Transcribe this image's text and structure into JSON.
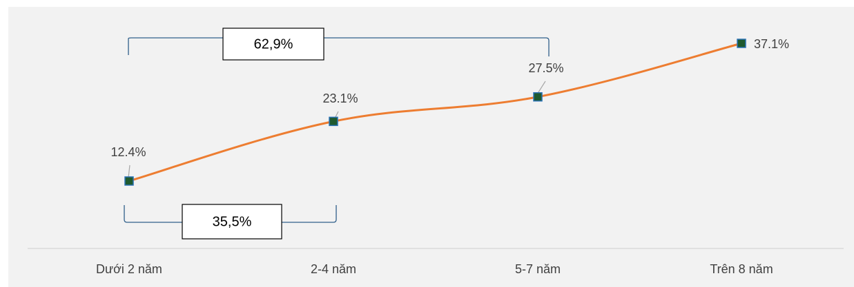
{
  "chart_data": {
    "type": "line",
    "categories": [
      "Dưới 2 năm",
      "2-4 năm",
      "5-7 năm",
      "Trên 8 năm"
    ],
    "series": [
      {
        "color": "#ed7d31",
        "values": [
          12.4,
          23.1,
          27.5,
          37.1
        ],
        "value_labels": [
          "12.4%",
          "23.1%",
          "27.5%",
          "37.1%"
        ]
      }
    ],
    "annotations": [
      "62,9%",
      "35,5%"
    ]
  }
}
